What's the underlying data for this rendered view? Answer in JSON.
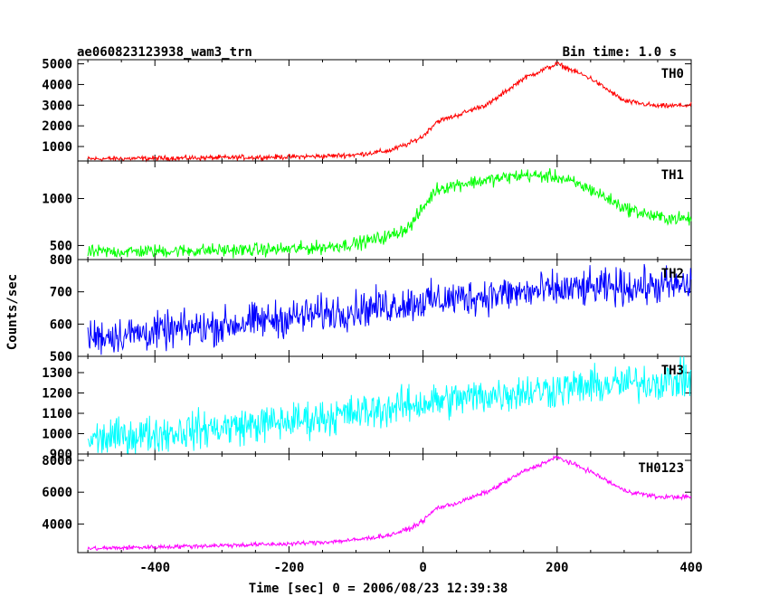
{
  "chart_data": {
    "type": "line",
    "title": "ae060823123938_wam3_trn",
    "bin_time_label": "Bin time: 1.0 s",
    "xlabel": "Time [sec] 0 = 2006/08/23 12:39:38",
    "ylabel": "Counts/sec",
    "xlim": [
      -515,
      400
    ],
    "xticks": [
      -400,
      -200,
      0,
      200,
      400
    ],
    "panels": [
      {
        "name": "TH0",
        "color": "#ff0000",
        "ylim": [
          300,
          5200
        ],
        "yticks": [
          1000,
          2000,
          3000,
          4000,
          5000
        ],
        "noise": 60,
        "x": [
          -500,
          -400,
          -300,
          -200,
          -150,
          -100,
          -50,
          -20,
          0,
          20,
          50,
          100,
          150,
          200,
          250,
          300,
          350,
          400
        ],
        "y": [
          400,
          430,
          460,
          500,
          530,
          600,
          800,
          1150,
          1500,
          2200,
          2500,
          3100,
          4300,
          5000,
          4300,
          3200,
          2950,
          3000
        ]
      },
      {
        "name": "TH1",
        "color": "#00ff00",
        "ylim": [
          350,
          1400
        ],
        "yticks": [
          500,
          1000
        ],
        "noise": 35,
        "x": [
          -500,
          -400,
          -300,
          -200,
          -150,
          -100,
          -50,
          -20,
          0,
          20,
          50,
          100,
          150,
          200,
          250,
          300,
          350,
          400
        ],
        "y": [
          430,
          440,
          450,
          460,
          480,
          520,
          600,
          700,
          900,
          1100,
          1150,
          1200,
          1250,
          1230,
          1100,
          900,
          800,
          780
        ]
      },
      {
        "name": "TH2",
        "color": "#0000ff",
        "ylim": [
          500,
          800
        ],
        "yticks": [
          500,
          600,
          700,
          800
        ],
        "noise": 28,
        "x": [
          -500,
          -400,
          -300,
          -200,
          -100,
          0,
          100,
          200,
          300,
          400
        ],
        "y": [
          560,
          575,
          595,
          620,
          645,
          670,
          690,
          705,
          715,
          720
        ]
      },
      {
        "name": "TH3",
        "color": "#00ffff",
        "ylim": [
          900,
          1380
        ],
        "yticks": [
          900,
          1000,
          1100,
          1200,
          1300
        ],
        "noise": 45,
        "x": [
          -500,
          -400,
          -300,
          -200,
          -100,
          0,
          100,
          200,
          300,
          400
        ],
        "y": [
          970,
          1000,
          1030,
          1060,
          1100,
          1150,
          1190,
          1220,
          1245,
          1265
        ]
      },
      {
        "name": "TH0123",
        "color": "#ff00ff",
        "ylim": [
          2200,
          8400
        ],
        "yticks": [
          4000,
          6000,
          8000
        ],
        "noise": 70,
        "x": [
          -500,
          -400,
          -300,
          -200,
          -150,
          -100,
          -50,
          -20,
          0,
          20,
          50,
          100,
          150,
          200,
          250,
          300,
          350,
          400
        ],
        "y": [
          2450,
          2550,
          2650,
          2750,
          2850,
          3000,
          3300,
          3700,
          4200,
          5000,
          5300,
          6100,
          7300,
          8200,
          7300,
          6100,
          5700,
          5700
        ]
      }
    ]
  }
}
